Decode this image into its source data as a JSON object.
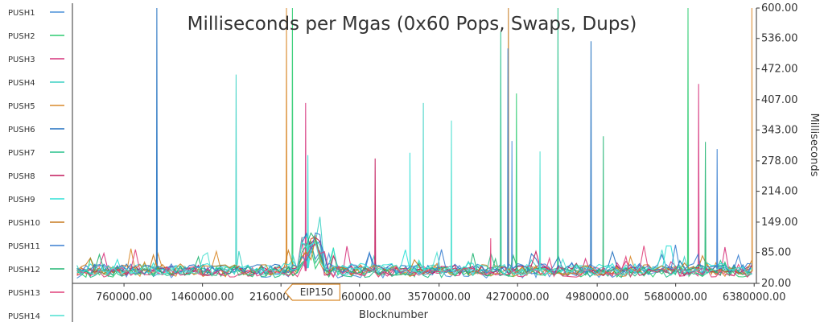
{
  "chart_data": {
    "type": "line",
    "title": "Milliseconds per Mgas (0x60 Pops, Swaps, Dups)",
    "xlabel": "Blocknumber",
    "ylabel": "Milliseconds",
    "xlim": [
      300000,
      6400000
    ],
    "ylim": [
      20,
      600
    ],
    "x_ticks": [
      "760000.00",
      "1460000.00",
      "2160000.00",
      "2860000.00",
      "3570000.00",
      "4270000.00",
      "4980000.00",
      "5680000.00",
      "6380000.00"
    ],
    "y_ticks": [
      "20.00",
      "85.00",
      "149.00",
      "214.00",
      "278.00",
      "343.00",
      "407.00",
      "472.00",
      "536.00",
      "600.00"
    ],
    "grid": false,
    "legend_position": "left",
    "annotation": {
      "label": "EIP150",
      "x": 2463000
    },
    "series": [
      {
        "name": "PUSH1",
        "color": "#4a90d9",
        "baseline": 42,
        "spikes": [
          [
            4220000,
            320
          ]
        ]
      },
      {
        "name": "PUSH2",
        "color": "#2ecc71",
        "baseline": 44,
        "spikes": [
          [
            2262000,
            600
          ],
          [
            5790000,
            600
          ],
          [
            4260000,
            420
          ]
        ]
      },
      {
        "name": "PUSH3",
        "color": "#d6337c",
        "baseline": 46,
        "spikes": [
          [
            2380000,
            400
          ],
          [
            5885000,
            440
          ]
        ]
      },
      {
        "name": "PUSH4",
        "color": "#3dd1c4",
        "baseline": 48,
        "spikes": [
          [
            1760000,
            460
          ],
          [
            3430000,
            400
          ]
        ]
      },
      {
        "name": "PUSH5",
        "color": "#d98a2b",
        "baseline": 45,
        "spikes": [
          [
            2209000,
            600
          ],
          [
            6360000,
            600
          ]
        ]
      },
      {
        "name": "PUSH6",
        "color": "#1f6fbf",
        "baseline": 50,
        "spikes": [
          [
            1053000,
            600
          ],
          [
            4925000,
            530
          ]
        ]
      },
      {
        "name": "PUSH7",
        "color": "#27c08a",
        "baseline": 43,
        "spikes": [
          [
            4120000,
            550
          ],
          [
            4630000,
            600
          ]
        ]
      },
      {
        "name": "PUSH8",
        "color": "#c2185b",
        "baseline": 47,
        "spikes": [
          [
            3000000,
            283
          ]
        ]
      },
      {
        "name": "PUSH9",
        "color": "#2fe0d6",
        "baseline": 52,
        "spikes": [
          [
            2400000,
            290
          ],
          [
            3310000,
            295
          ]
        ]
      },
      {
        "name": "PUSH10",
        "color": "#c77a1e",
        "baseline": 49,
        "spikes": [
          [
            4188000,
            600
          ]
        ]
      },
      {
        "name": "PUSH11",
        "color": "#3a7fd0",
        "baseline": 51,
        "spikes": [
          [
            4184000,
            515
          ],
          [
            6050000,
            303
          ]
        ]
      },
      {
        "name": "PUSH12",
        "color": "#22b573",
        "baseline": 46,
        "spikes": [
          [
            5035000,
            330
          ],
          [
            5945000,
            318
          ]
        ]
      },
      {
        "name": "PUSH13",
        "color": "#e0407a",
        "baseline": 44,
        "spikes": [
          [
            4030000,
            115
          ]
        ]
      },
      {
        "name": "PUSH14",
        "color": "#4de0d0",
        "baseline": 48,
        "spikes": [
          [
            3680000,
            363
          ],
          [
            4470000,
            298
          ]
        ]
      }
    ]
  }
}
